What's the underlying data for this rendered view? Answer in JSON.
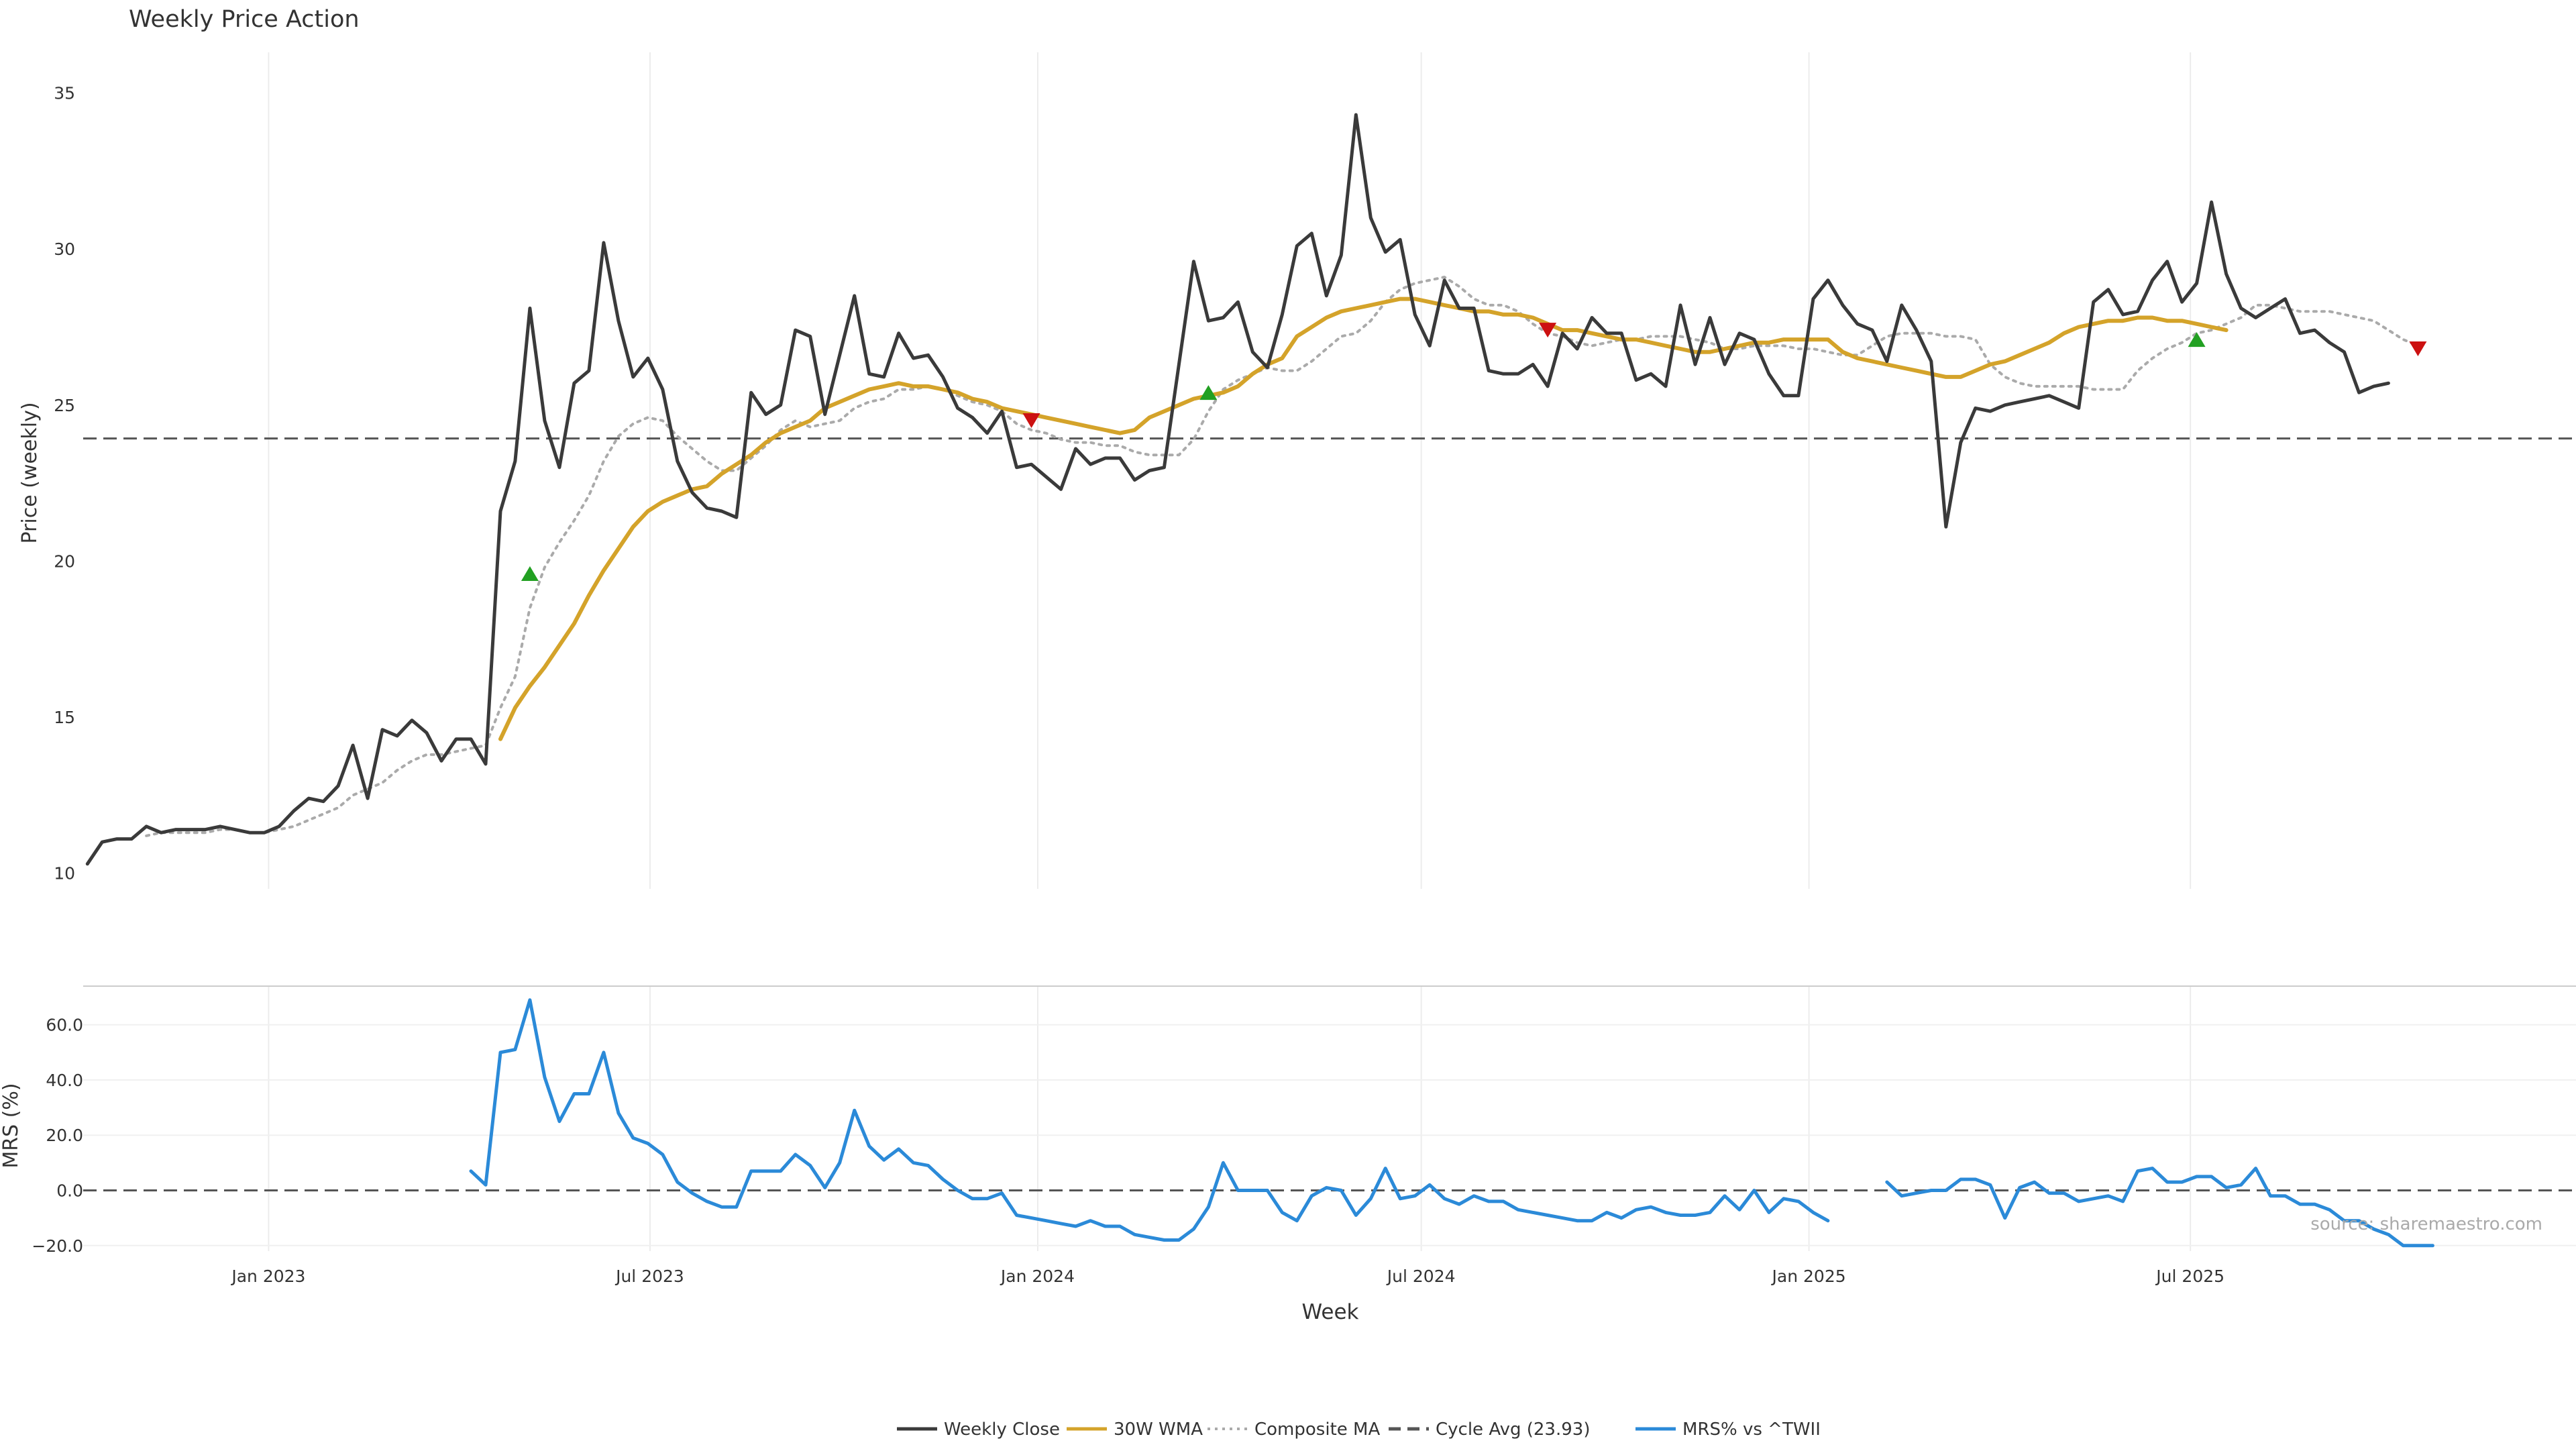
{
  "title": "Weekly Price Action",
  "source_note": "source: sharemaestro.com",
  "colors": {
    "close": "#3a3a3a",
    "wma": "#d4a32a",
    "composite": "#aaaaaa",
    "cycle": "#555555",
    "mrs": "#2b8ad8",
    "buy": "#22a022",
    "sell": "#cc1111",
    "grid": "#ececec"
  },
  "legend": [
    {
      "label": "Weekly Close",
      "style": "solid",
      "color": "#3a3a3a"
    },
    {
      "label": "30W WMA",
      "style": "solid",
      "color": "#d4a32a"
    },
    {
      "label": "Composite MA",
      "style": "dotted",
      "color": "#aaaaaa"
    },
    {
      "label": "Cycle Avg (23.93)",
      "style": "dashed",
      "color": "#555555"
    },
    {
      "label": "MRS% vs ^TWII",
      "style": "solid",
      "color": "#2b8ad8"
    }
  ],
  "chart_data": [
    {
      "type": "line",
      "ylabel": "Price (weekly)",
      "xlabel": "",
      "ylim": [
        9.5,
        36.3
      ],
      "xlim": [
        "2022-10-05",
        "2025-12-31"
      ],
      "yticks": [
        10,
        15,
        20,
        25,
        30,
        35
      ],
      "xticks": [
        "2023-01-01",
        "2023-07-01",
        "2024-01-01",
        "2024-07-01",
        "2025-01-01",
        "2025-07-01"
      ],
      "x_start": "2022-10-07",
      "x_step_days": 7,
      "cycle_avg": 23.93,
      "series": [
        {
          "name": "Weekly Close",
          "values": [
            10.3,
            11.0,
            11.1,
            11.1,
            11.5,
            11.3,
            11.4,
            11.4,
            11.4,
            11.5,
            11.4,
            11.3,
            11.3,
            11.5,
            12.0,
            12.4,
            12.3,
            12.8,
            14.1,
            12.4,
            14.6,
            14.4,
            14.9,
            14.5,
            13.6,
            14.3,
            14.3,
            13.5,
            21.6,
            23.2,
            28.1,
            24.5,
            23.0,
            25.7,
            26.1,
            30.2,
            27.7,
            25.9,
            26.5,
            25.5,
            23.2,
            22.2,
            21.7,
            21.6,
            21.4,
            25.4,
            24.7,
            25.0,
            27.4,
            27.2,
            24.7,
            26.6,
            28.5,
            26.0,
            25.9,
            27.3,
            26.5,
            26.6,
            25.9,
            24.9,
            24.6,
            24.1,
            24.8,
            23.0,
            23.1,
            22.7,
            22.3,
            23.6,
            23.1,
            23.3,
            23.3,
            22.6,
            22.9,
            23.0,
            26.3,
            29.6,
            27.7,
            27.8,
            28.3,
            26.7,
            26.2,
            27.9,
            30.1,
            30.5,
            28.5,
            29.8,
            34.3,
            31.0,
            29.9,
            30.3,
            27.9,
            26.9,
            29.0,
            28.1,
            28.1,
            26.1,
            26.0,
            26.0,
            26.3,
            25.6,
            27.3,
            26.8,
            27.8,
            27.3,
            27.3,
            25.8,
            26.0,
            25.6,
            28.2,
            26.3,
            27.8,
            26.3,
            27.3,
            27.1,
            26.0,
            25.3,
            25.3,
            28.4,
            29.0,
            28.2,
            27.6,
            27.4,
            26.4,
            28.2,
            27.4,
            26.4,
            21.1,
            23.8,
            24.9,
            24.8,
            25.0,
            25.1,
            25.2,
            25.3,
            25.1,
            24.9,
            28.3,
            28.7,
            27.9,
            28.0,
            29.0,
            29.6,
            28.3,
            28.9,
            31.5,
            29.2,
            28.1,
            27.8,
            28.1,
            28.4,
            27.3,
            27.4,
            27.0,
            26.7,
            25.4,
            25.6,
            25.7
          ]
        },
        {
          "name": "30W WMA",
          "start_index": 28,
          "values": [
            14.3,
            15.3,
            16.0,
            16.6,
            17.3,
            18.0,
            18.9,
            19.7,
            20.4,
            21.1,
            21.6,
            21.9,
            22.1,
            22.3,
            22.4,
            22.8,
            23.1,
            23.4,
            23.8,
            24.1,
            24.3,
            24.5,
            24.9,
            25.1,
            25.3,
            25.5,
            25.6,
            25.7,
            25.6,
            25.6,
            25.5,
            25.4,
            25.2,
            25.1,
            24.9,
            24.8,
            24.7,
            24.6,
            24.5,
            24.4,
            24.3,
            24.2,
            24.1,
            24.2,
            24.6,
            24.8,
            25.0,
            25.2,
            25.3,
            25.4,
            25.6,
            26.0,
            26.3,
            26.5,
            27.2,
            27.5,
            27.8,
            28.0,
            28.1,
            28.2,
            28.3,
            28.4,
            28.4,
            28.3,
            28.2,
            28.1,
            28.0,
            28.0,
            27.9,
            27.9,
            27.8,
            27.6,
            27.4,
            27.4,
            27.3,
            27.2,
            27.1,
            27.1,
            27.0,
            26.9,
            26.8,
            26.7,
            26.7,
            26.8,
            26.9,
            27.0,
            27.0,
            27.1,
            27.1,
            27.1,
            27.1,
            26.7,
            26.5,
            26.4,
            26.3,
            26.2,
            26.1,
            26.0,
            25.9,
            25.9,
            26.1,
            26.3,
            26.4,
            26.6,
            26.8,
            27.0,
            27.3,
            27.5,
            27.6,
            27.7,
            27.7,
            27.8,
            27.8,
            27.7,
            27.7,
            27.6,
            27.5,
            27.4
          ]
        },
        {
          "name": "Composite MA",
          "start_index": 4,
          "values": [
            11.2,
            11.3,
            11.3,
            11.3,
            11.3,
            11.4,
            11.4,
            11.3,
            11.3,
            11.4,
            11.5,
            11.7,
            11.9,
            12.1,
            12.5,
            12.7,
            12.9,
            13.3,
            13.6,
            13.8,
            13.8,
            13.9,
            14.0,
            14.1,
            15.3,
            16.3,
            18.5,
            19.8,
            20.6,
            21.3,
            22.1,
            23.2,
            24.0,
            24.4,
            24.6,
            24.5,
            24.0,
            23.6,
            23.2,
            22.9,
            22.9,
            23.3,
            23.7,
            24.2,
            24.5,
            24.3,
            24.4,
            24.5,
            24.9,
            25.1,
            25.2,
            25.5,
            25.5,
            25.6,
            25.5,
            25.3,
            25.1,
            25.0,
            24.8,
            24.4,
            24.2,
            24.1,
            23.9,
            23.8,
            23.8,
            23.7,
            23.7,
            23.5,
            23.4,
            23.4,
            23.4,
            23.9,
            24.8,
            25.5,
            25.8,
            26.0,
            26.2,
            26.1,
            26.1,
            26.4,
            26.8,
            27.2,
            27.3,
            27.7,
            28.3,
            28.7,
            28.9,
            29.0,
            29.1,
            28.8,
            28.4,
            28.2,
            28.2,
            28.0,
            27.6,
            27.3,
            27.2,
            27.0,
            26.9,
            27.0,
            27.1,
            27.1,
            27.2,
            27.2,
            27.2,
            27.1,
            27.0,
            26.8,
            26.8,
            26.9,
            26.9,
            26.9,
            26.8,
            26.8,
            26.7,
            26.6,
            26.6,
            26.9,
            27.2,
            27.3,
            27.3,
            27.3,
            27.2,
            27.2,
            27.1,
            26.3,
            25.9,
            25.7,
            25.6,
            25.6,
            25.6,
            25.6,
            25.5,
            25.5,
            25.5,
            26.1,
            26.5,
            26.8,
            27.0,
            27.3,
            27.4,
            27.6,
            27.8,
            28.2,
            28.2,
            28.1,
            28.0,
            28.0,
            28.0,
            27.9,
            27.8,
            27.7,
            27.4,
            27.1,
            26.9
          ]
        }
      ],
      "signals": [
        {
          "type": "buy",
          "x_index": 30,
          "y": 19.6
        },
        {
          "type": "sell",
          "x_index": 64,
          "y": 24.5
        },
        {
          "type": "buy",
          "x_index": 76,
          "y": 25.4
        },
        {
          "type": "sell",
          "x_index": 99,
          "y": 27.4
        },
        {
          "type": "buy",
          "x_index": 143,
          "y": 27.1
        },
        {
          "type": "sell",
          "x_index": 158,
          "y": 26.8
        }
      ]
    },
    {
      "type": "line",
      "ylabel": "MRS (%)",
      "xlabel": "Week",
      "ylim": [
        -22,
        74
      ],
      "xlim": [
        "2022-10-05",
        "2025-12-31"
      ],
      "yticks": [
        -20,
        0,
        20,
        40,
        60
      ],
      "ytick_labels": [
        "−20.0",
        "0.0",
        "20.0",
        "40.0",
        "60.0"
      ],
      "xticks": [
        "2023-01-01",
        "2023-07-01",
        "2024-01-01",
        "2024-07-01",
        "2025-01-01",
        "2025-07-01"
      ],
      "xtick_labels": [
        "Jan 2023",
        "Jul 2023",
        "Jan 2024",
        "Jul 2024",
        "Jan 2025",
        "Jul 2025"
      ],
      "baseline": 0,
      "x_start": "2022-10-07",
      "x_step_days": 7,
      "series": [
        {
          "name": "MRS% vs ^TWII",
          "start_index": 26,
          "values": [
            7,
            2,
            50,
            51,
            69,
            41,
            25,
            35,
            35,
            50,
            28,
            19,
            17,
            13,
            3,
            -1,
            -4,
            -6,
            -6,
            7,
            7,
            7,
            13,
            9,
            1,
            10,
            29,
            16,
            11,
            15,
            10,
            9,
            4,
            0,
            -3,
            -3,
            -1,
            -9,
            -10,
            -11,
            -12,
            -13,
            -11,
            -13,
            -13,
            -16,
            -17,
            -18,
            -18,
            -14,
            -6,
            10,
            0,
            0,
            0,
            -8,
            -11,
            -2,
            1,
            0,
            -9,
            -3,
            8,
            -3,
            -2,
            2,
            -3,
            -5,
            -2,
            -4,
            -4,
            -7,
            -8,
            -9,
            -10,
            -11,
            -11,
            -8,
            -10,
            -7,
            -6,
            -8,
            -9,
            -9,
            -8,
            -2,
            -7,
            0,
            -8,
            -3,
            -4,
            -8,
            -11,
            null,
            null,
            null,
            3,
            -2,
            -1,
            0,
            0,
            4,
            4,
            2,
            -10,
            1,
            3,
            -1,
            -1,
            -4,
            -3,
            -2,
            -4,
            7,
            8,
            3,
            3,
            5,
            5,
            1,
            2,
            8,
            -2,
            -2,
            -5,
            -5,
            -7,
            -11,
            -11,
            -14,
            -16,
            -20,
            -20,
            -20
          ]
        }
      ]
    }
  ]
}
